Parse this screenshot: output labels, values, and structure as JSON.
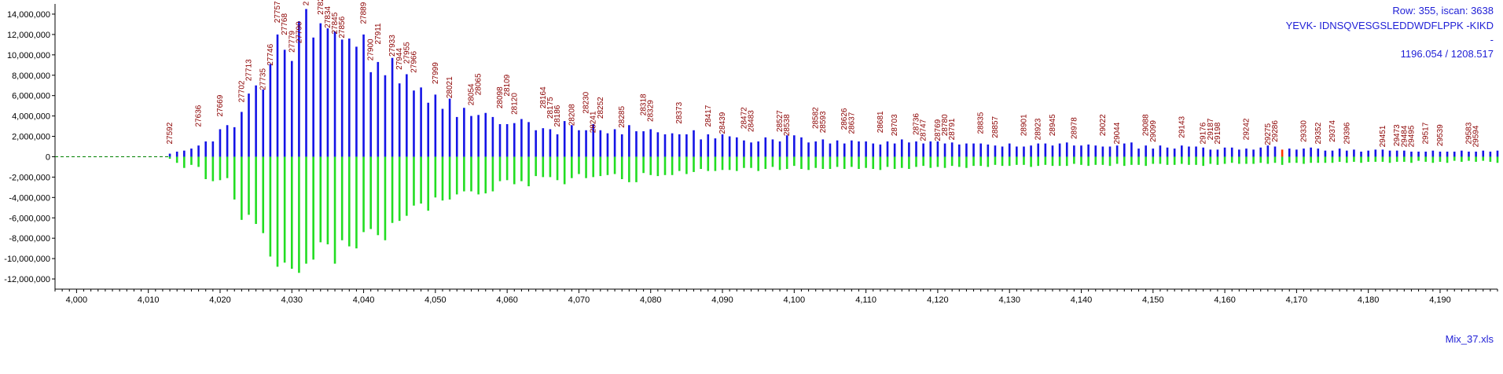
{
  "info": {
    "row_text": "Row: 355, iscan: 3638",
    "sequence": "YEVK- IDNSQVESGSLEDDWDFLPPK -KIKD",
    "dash": "-",
    "mz_text": "1196.054 / 1208.517"
  },
  "file_name": "Mix_37.xls",
  "colors": {
    "top_bars": "#1414e6",
    "bottom_bars": "#22dd22",
    "highlight_bar": "#ff3300",
    "scan_labels": "#8b0000",
    "baseline": "#008000",
    "info_text": "#1f1fd6"
  },
  "chart_data": {
    "type": "bar",
    "xlim": [
      3997,
      4198
    ],
    "ylim": [
      -13000000,
      15000000
    ],
    "x_ticks": [
      4000,
      4010,
      4020,
      4030,
      4040,
      4050,
      4060,
      4070,
      4080,
      4090,
      4100,
      4110,
      4120,
      4130,
      4140,
      4150,
      4160,
      4170,
      4180,
      4190
    ],
    "x_tick_labels": [
      "4,000",
      "4,010",
      "4,020",
      "4,030",
      "4,040",
      "4,050",
      "4,060",
      "4,070",
      "4,080",
      "4,090",
      "4,100",
      "4,110",
      "4,120",
      "4,130",
      "4,140",
      "4,150",
      "4,160",
      "4,170",
      "4,180",
      "4,190"
    ],
    "y_ticks": [
      14000000,
      12000000,
      10000000,
      8000000,
      6000000,
      4000000,
      2000000,
      0,
      -2000000,
      -4000000,
      -6000000,
      -8000000,
      -10000000,
      -12000000
    ],
    "y_tick_labels": [
      "14,000,000",
      "12,000,000",
      "10,000,000",
      "8,000,000",
      "6,000,000",
      "4,000,000",
      "2,000,000",
      "0",
      "-2,000,000",
      "-4,000,000",
      "-6,000,000",
      "-8,000,000",
      "-10,000,000",
      "-12,000,000"
    ],
    "baseline_start_x": 3997,
    "x_start": 4013,
    "x_step": 1,
    "series": [
      {
        "values": [
          300000,
          500000,
          600000,
          800000,
          1100000,
          1500000,
          1500000,
          2700000,
          3100000,
          2900000,
          4400000,
          6200000,
          7000000,
          6600000,
          9100000,
          12000000,
          10500000,
          9400000,
          13300000,
          14500000,
          11700000,
          13100000,
          12600000,
          12300000,
          11500000,
          11600000,
          10800000,
          12000000,
          8300000,
          9300000,
          8000000,
          9700000,
          7200000,
          8100000,
          6500000,
          6800000,
          5300000,
          6100000,
          4700000,
          5700000,
          3900000,
          4800000,
          4000000,
          4100000,
          4300000,
          3900000,
          3200000,
          3200000,
          3300000,
          3700000,
          3400000,
          2600000,
          2800000,
          2700000,
          2200000,
          3500000,
          3100000,
          2600000,
          2600000,
          3200000,
          2600000,
          2300000,
          2700000,
          2200000,
          3100000,
          2500000,
          2500000,
          2700000,
          2400000,
          2200000,
          2300000,
          2200000,
          2200000,
          2600000,
          1700000,
          2200000,
          1800000,
          2200000,
          2000000,
          1900000,
          1600000,
          1400000,
          1500000,
          1900000,
          1700000,
          1500000,
          2100000,
          2100000,
          1900000,
          1400000,
          1500000,
          1700000,
          1300000,
          1600000,
          1300000,
          1600000,
          1500000,
          1500000,
          1300000,
          1200000,
          1500000,
          1300000,
          1700000,
          1400000,
          1500000,
          1300000,
          1500000,
          1500000,
          1300000,
          1400000,
          1200000,
          1300000,
          1300000,
          1300000,
          1200000,
          1100000,
          1000000,
          1300000,
          1000000,
          1000000,
          1100000,
          1300000,
          1300000,
          1100000,
          1300000,
          1400000,
          1100000,
          1100000,
          1200000,
          1100000,
          1000000,
          1000000,
          1100000,
          1300000,
          1400000,
          800000,
          1100000,
          800000,
          1100000,
          900000,
          800000,
          1100000,
          1000000,
          1000000,
          900000,
          700000,
          700000,
          900000,
          900000,
          700000,
          800000,
          700000,
          900000,
          1100000,
          1000000,
          700000,
          800000,
          700000,
          800000,
          900000,
          800000,
          600000,
          600000,
          800000,
          600000,
          700000,
          500000,
          600000,
          700000,
          700000,
          600000,
          600000,
          600000,
          500000,
          500000,
          500000,
          600000,
          500000,
          500000,
          500000,
          600000,
          500000,
          500000,
          600000,
          500000,
          600000,
          500000,
          400000,
          500000,
          500000
        ]
      },
      {
        "values": [
          -200000,
          -600000,
          -1100000,
          -800000,
          -1000000,
          -2200000,
          -2400000,
          -2300000,
          -2100000,
          -4200000,
          -6200000,
          -5700000,
          -6600000,
          -7500000,
          -9800000,
          -10800000,
          -10400000,
          -11000000,
          -11400000,
          -10500000,
          -10100000,
          -8400000,
          -8600000,
          -10500000,
          -8200000,
          -8800000,
          -9000000,
          -7400000,
          -7100000,
          -7700000,
          -8200000,
          -6500000,
          -6300000,
          -5800000,
          -4800000,
          -4600000,
          -5300000,
          -4000000,
          -4300000,
          -4200000,
          -3700000,
          -3400000,
          -3400000,
          -3700000,
          -3600000,
          -3400000,
          -2400000,
          -2300000,
          -2700000,
          -2400000,
          -2900000,
          -1900000,
          -2000000,
          -2000000,
          -2300000,
          -2700000,
          -2100000,
          -1700000,
          -2100000,
          -2000000,
          -1900000,
          -1800000,
          -1700000,
          -2200000,
          -2500000,
          -2500000,
          -1600000,
          -1800000,
          -1900000,
          -1800000,
          -1800000,
          -1400000,
          -1700000,
          -1500000,
          -1200000,
          -1400000,
          -1400000,
          -1300000,
          -1300000,
          -1400000,
          -1100000,
          -1100000,
          -1400000,
          -1200000,
          -1000000,
          -1300000,
          -1200000,
          -900000,
          -1200000,
          -1300000,
          -1100000,
          -1200000,
          -1200000,
          -1000000,
          -1200000,
          -1000000,
          -1200000,
          -1100000,
          -1200000,
          -1300000,
          -1000000,
          -1200000,
          -1100000,
          -1200000,
          -1000000,
          -900000,
          -1100000,
          -1000000,
          -1100000,
          -900000,
          -1000000,
          -1100000,
          -900000,
          -900000,
          -1000000,
          -800000,
          -900000,
          -900000,
          -800000,
          -800000,
          -1000000,
          -900000,
          -800000,
          -900000,
          -900000,
          -900000,
          -700000,
          -800000,
          -900000,
          -800000,
          -800000,
          -900000,
          -700000,
          -900000,
          -800000,
          -800000,
          -900000,
          -700000,
          -700000,
          -800000,
          -800000,
          -700000,
          -800000,
          -800000,
          -900000,
          -700000,
          -800000,
          -700000,
          -600000,
          -700000,
          -700000,
          -700000,
          -600000,
          -700000,
          -600000,
          -800000,
          -600000,
          -600000,
          -700000,
          -600000,
          -600000,
          -600000,
          -600000,
          -500000,
          -600000,
          -500000,
          -600000,
          -500000,
          -500000,
          -500000,
          -600000,
          -500000,
          -500000,
          -600000,
          -400000,
          -500000,
          -600000,
          -500000,
          -600000,
          -400000,
          -500000,
          -400000,
          -500000,
          -400000,
          -500000,
          -600000,
          -400000,
          -500000,
          -400000,
          -400000
        ]
      }
    ],
    "highlight": {
      "x": 4168,
      "value": 800000
    },
    "peak_labels": [
      {
        "text": "27592",
        "x": 4013,
        "y": 1000000
      },
      {
        "text": "27636",
        "x": 4017,
        "y": 2700000
      },
      {
        "text": "27669",
        "x": 4020,
        "y": 3700000
      },
      {
        "text": "27702",
        "x": 4023,
        "y": 5100000
      },
      {
        "text": "27713",
        "x": 4024,
        "y": 7200000
      },
      {
        "text": "27735",
        "x": 4026,
        "y": 6300000
      },
      {
        "text": "27746",
        "x": 4027,
        "y": 8700000
      },
      {
        "text": "27757",
        "x": 4028,
        "y": 12900000
      },
      {
        "text": "27768",
        "x": 4029,
        "y": 11700000
      },
      {
        "text": "27779",
        "x": 4030,
        "y": 10000000
      },
      {
        "text": "27790",
        "x": 4031,
        "y": 10900000
      },
      {
        "text": "2",
        "x": 4032,
        "y": 14600000
      },
      {
        "text": "27823",
        "x": 4034,
        "y": 13700000
      },
      {
        "text": "27834",
        "x": 4035,
        "y": 12400000
      },
      {
        "text": "27845",
        "x": 4036,
        "y": 11800000
      },
      {
        "text": "27856",
        "x": 4037,
        "y": 11400000
      },
      {
        "text": "27889",
        "x": 4040,
        "y": 12800000
      },
      {
        "text": "27900",
        "x": 4041,
        "y": 9200000
      },
      {
        "text": "27911",
        "x": 4042,
        "y": 10800000
      },
      {
        "text": "27933",
        "x": 4044,
        "y": 9600000
      },
      {
        "text": "27944",
        "x": 4045,
        "y": 8300000
      },
      {
        "text": "27955",
        "x": 4046,
        "y": 8900000
      },
      {
        "text": "27966",
        "x": 4047,
        "y": 8000000
      },
      {
        "text": "27999",
        "x": 4050,
        "y": 6900000
      },
      {
        "text": "28021",
        "x": 4052,
        "y": 5500000
      },
      {
        "text": "28054",
        "x": 4055,
        "y": 4800000
      },
      {
        "text": "28065",
        "x": 4056,
        "y": 5800000
      },
      {
        "text": "28098",
        "x": 4059,
        "y": 4500000
      },
      {
        "text": "28109",
        "x": 4060,
        "y": 5700000
      },
      {
        "text": "28120",
        "x": 4061,
        "y": 3900000
      },
      {
        "text": "28164",
        "x": 4065,
        "y": 4500000
      },
      {
        "text": "28175",
        "x": 4066,
        "y": 3500000
      },
      {
        "text": "28186",
        "x": 4067,
        "y": 2700000
      },
      {
        "text": "28208",
        "x": 4069,
        "y": 2800000
      },
      {
        "text": "28230",
        "x": 4071,
        "y": 4000000
      },
      {
        "text": "28241",
        "x": 4072,
        "y": 2100000
      },
      {
        "text": "28252",
        "x": 4073,
        "y": 3500000
      },
      {
        "text": "28285",
        "x": 4076,
        "y": 2600000
      },
      {
        "text": "28318",
        "x": 4079,
        "y": 3800000
      },
      {
        "text": "28329",
        "x": 4080,
        "y": 3200000
      },
      {
        "text": "28373",
        "x": 4084,
        "y": 3000000
      },
      {
        "text": "28417",
        "x": 4088,
        "y": 2700000
      },
      {
        "text": "28439",
        "x": 4090,
        "y": 2000000
      },
      {
        "text": "28472",
        "x": 4093,
        "y": 2500000
      },
      {
        "text": "28483",
        "x": 4094,
        "y": 2200000
      },
      {
        "text": "28527",
        "x": 4098,
        "y": 2200000
      },
      {
        "text": "28538",
        "x": 4099,
        "y": 1800000
      },
      {
        "text": "28582",
        "x": 4103,
        "y": 2500000
      },
      {
        "text": "28593",
        "x": 4104,
        "y": 2100000
      },
      {
        "text": "28626",
        "x": 4107,
        "y": 2400000
      },
      {
        "text": "28637",
        "x": 4108,
        "y": 2000000
      },
      {
        "text": "28681",
        "x": 4112,
        "y": 2100000
      },
      {
        "text": "28703",
        "x": 4114,
        "y": 1800000
      },
      {
        "text": "28736",
        "x": 4117,
        "y": 1900000
      },
      {
        "text": "28747",
        "x": 4118,
        "y": 1300000
      },
      {
        "text": "28769",
        "x": 4120,
        "y": 1300000
      },
      {
        "text": "28780",
        "x": 4121,
        "y": 1800000
      },
      {
        "text": "28791",
        "x": 4122,
        "y": 1400000
      },
      {
        "text": "28835",
        "x": 4126,
        "y": 2000000
      },
      {
        "text": "28857",
        "x": 4128,
        "y": 1600000
      },
      {
        "text": "28901",
        "x": 4132,
        "y": 1800000
      },
      {
        "text": "28923",
        "x": 4134,
        "y": 1400000
      },
      {
        "text": "28945",
        "x": 4136,
        "y": 1800000
      },
      {
        "text": "28978",
        "x": 4139,
        "y": 1500000
      },
      {
        "text": "29022",
        "x": 4143,
        "y": 1800000
      },
      {
        "text": "29044",
        "x": 4145,
        "y": 1000000
      },
      {
        "text": "29088",
        "x": 4149,
        "y": 1800000
      },
      {
        "text": "29099",
        "x": 4150,
        "y": 1200000
      },
      {
        "text": "29143",
        "x": 4154,
        "y": 1600000
      },
      {
        "text": "29176",
        "x": 4157,
        "y": 1000000
      },
      {
        "text": "29187",
        "x": 4158,
        "y": 1400000
      },
      {
        "text": "29198",
        "x": 4159,
        "y": 1000000
      },
      {
        "text": "29242",
        "x": 4163,
        "y": 1400000
      },
      {
        "text": "29275",
        "x": 4166,
        "y": 900000
      },
      {
        "text": "29286",
        "x": 4167,
        "y": 1200000
      },
      {
        "text": "29330",
        "x": 4171,
        "y": 1200000
      },
      {
        "text": "29352",
        "x": 4173,
        "y": 1000000
      },
      {
        "text": "29374",
        "x": 4175,
        "y": 1200000
      },
      {
        "text": "29396",
        "x": 4177,
        "y": 1000000
      },
      {
        "text": "29451",
        "x": 4182,
        "y": 700000
      },
      {
        "text": "29473",
        "x": 4184,
        "y": 800000
      },
      {
        "text": "29484",
        "x": 4185,
        "y": 700000
      },
      {
        "text": "29495",
        "x": 4186,
        "y": 700000
      },
      {
        "text": "29517",
        "x": 4188,
        "y": 1000000
      },
      {
        "text": "29539",
        "x": 4190,
        "y": 800000
      },
      {
        "text": "29583",
        "x": 4194,
        "y": 1000000
      },
      {
        "text": "29594",
        "x": 4195,
        "y": 700000
      }
    ]
  }
}
